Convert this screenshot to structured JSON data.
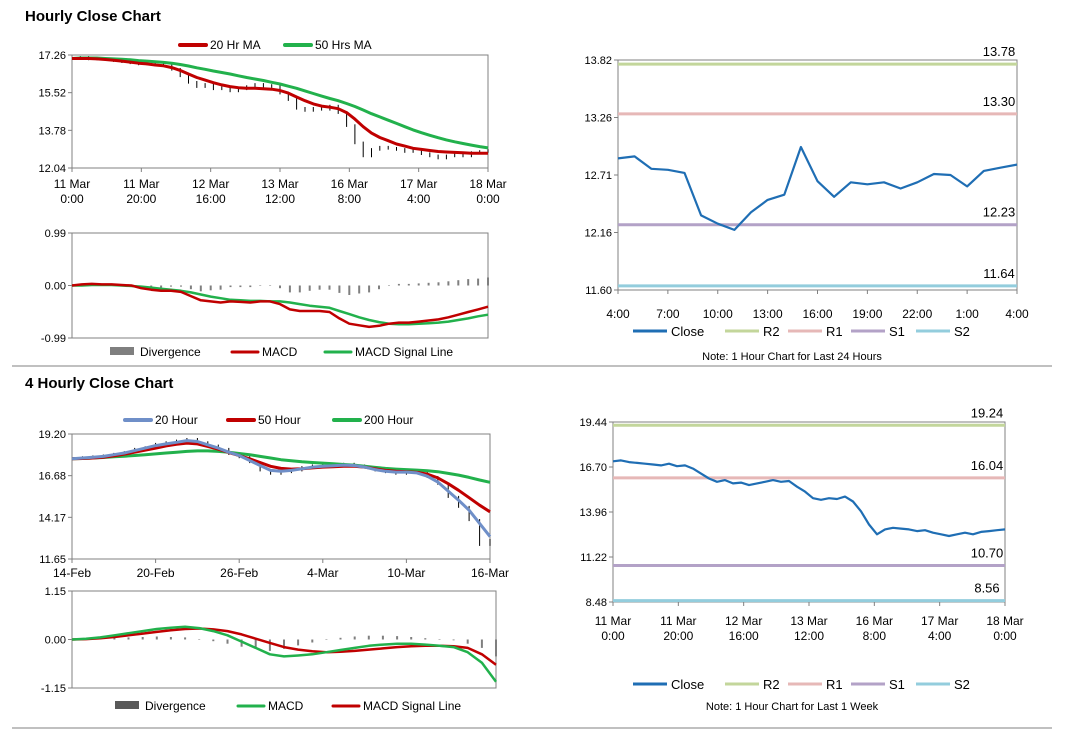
{
  "sections": [
    {
      "title": "Hourly Close Chart"
    },
    {
      "title": "4 Hourly Close Chart"
    }
  ],
  "colors": {
    "ma_red": "#c00000",
    "ma_green": "#22b14c",
    "ma_blue": "#6f8fc8",
    "close_blue": "#1f6eb4",
    "r2": "#c3d69b",
    "r1": "#e6b8b7",
    "s1": "#b3a2c7",
    "s2": "#93cddd",
    "divergence": "#7f7f7f"
  },
  "chart_data": [
    {
      "id": "hourly_price",
      "type": "line",
      "title": "Hourly Close Chart",
      "x_tick_labels": [
        [
          "11 Mar",
          "0:00"
        ],
        [
          "11 Mar",
          "20:00"
        ],
        [
          "12 Mar",
          "16:00"
        ],
        [
          "13 Mar",
          "12:00"
        ],
        [
          "16 Mar",
          "8:00"
        ],
        [
          "17 Mar",
          "4:00"
        ],
        [
          "18 Mar",
          "0:00"
        ]
      ],
      "y_tick_labels": [
        "17.26",
        "15.52",
        "13.78",
        "12.04"
      ],
      "ylim": [
        12.04,
        17.26
      ],
      "legend": [
        "20 Hr MA",
        "50 Hrs MA"
      ],
      "close": [
        17.1,
        17.15,
        17.08,
        17.1,
        17.05,
        17.0,
        16.95,
        16.9,
        16.85,
        16.9,
        16.8,
        16.85,
        16.6,
        16.3,
        16.0,
        15.8,
        15.9,
        15.7,
        15.75,
        15.6,
        15.7,
        15.8,
        15.9,
        15.8,
        15.85,
        15.5,
        15.2,
        14.8,
        14.7,
        14.8,
        14.75,
        14.9,
        14.6,
        14.0,
        13.2,
        12.6,
        12.9,
        13.0,
        12.95,
        12.9,
        12.8,
        12.85,
        12.7,
        12.6,
        12.5,
        12.6,
        12.7,
        12.6,
        12.75,
        12.8,
        12.85
      ],
      "ma20": [
        17.1,
        17.1,
        17.1,
        17.08,
        17.05,
        17.02,
        16.98,
        16.93,
        16.88,
        16.85,
        16.8,
        16.76,
        16.68,
        16.55,
        16.38,
        16.22,
        16.1,
        15.98,
        15.88,
        15.8,
        15.75,
        15.72,
        15.72,
        15.7,
        15.68,
        15.62,
        15.5,
        15.32,
        15.15,
        15.0,
        14.9,
        14.85,
        14.78,
        14.6,
        14.3,
        13.95,
        13.65,
        13.45,
        13.3,
        13.15,
        13.05,
        12.95,
        12.9,
        12.85,
        12.8,
        12.78,
        12.76,
        12.74,
        12.72,
        12.72,
        12.72
      ],
      "ma50": [
        17.1,
        17.12,
        17.12,
        17.12,
        17.1,
        17.08,
        17.06,
        17.04,
        17.0,
        16.98,
        16.95,
        16.92,
        16.88,
        16.82,
        16.75,
        16.67,
        16.6,
        16.52,
        16.45,
        16.38,
        16.3,
        16.22,
        16.15,
        16.08,
        16.0,
        15.92,
        15.82,
        15.72,
        15.6,
        15.48,
        15.36,
        15.25,
        15.15,
        15.02,
        14.88,
        14.72,
        14.55,
        14.4,
        14.25,
        14.1,
        13.95,
        13.8,
        13.67,
        13.55,
        13.44,
        13.34,
        13.25,
        13.17,
        13.1,
        13.03,
        12.97
      ]
    },
    {
      "id": "hourly_macd",
      "type": "line",
      "y_tick_labels": [
        "0.99",
        "0.00",
        "-0.99"
      ],
      "ylim": [
        -0.99,
        0.99
      ],
      "legend": [
        "Divergence",
        "MACD",
        "MACD Signal Line"
      ],
      "macd": [
        0.0,
        0.02,
        0.03,
        0.02,
        0.02,
        0.01,
        0.0,
        -0.05,
        -0.08,
        -0.1,
        -0.1,
        -0.12,
        -0.2,
        -0.28,
        -0.3,
        -0.32,
        -0.3,
        -0.31,
        -0.32,
        -0.3,
        -0.3,
        -0.35,
        -0.45,
        -0.48,
        -0.48,
        -0.48,
        -0.5,
        -0.62,
        -0.72,
        -0.75,
        -0.78,
        -0.76,
        -0.72,
        -0.7,
        -0.7,
        -0.68,
        -0.66,
        -0.64,
        -0.6,
        -0.55,
        -0.5,
        -0.45,
        -0.4
      ],
      "signal": [
        0.0,
        0.0,
        0.01,
        0.01,
        0.01,
        0.0,
        -0.01,
        -0.02,
        -0.04,
        -0.06,
        -0.08,
        -0.1,
        -0.13,
        -0.17,
        -0.21,
        -0.24,
        -0.27,
        -0.28,
        -0.29,
        -0.29,
        -0.3,
        -0.3,
        -0.32,
        -0.35,
        -0.38,
        -0.4,
        -0.42,
        -0.48,
        -0.54,
        -0.6,
        -0.65,
        -0.69,
        -0.72,
        -0.73,
        -0.73,
        -0.72,
        -0.71,
        -0.7,
        -0.68,
        -0.65,
        -0.62,
        -0.58,
        -0.55
      ],
      "divergence": [
        0.0,
        0.02,
        0.02,
        0.01,
        0.01,
        0.01,
        0.01,
        -0.03,
        -0.04,
        -0.04,
        -0.02,
        -0.02,
        -0.07,
        -0.11,
        -0.09,
        -0.08,
        -0.03,
        -0.03,
        -0.03,
        -0.01,
        0.0,
        -0.05,
        -0.13,
        -0.13,
        -0.1,
        -0.08,
        -0.08,
        -0.14,
        -0.18,
        -0.15,
        -0.13,
        -0.07,
        0.0,
        0.03,
        0.03,
        0.04,
        0.05,
        0.06,
        0.08,
        0.1,
        0.12,
        0.13,
        0.15
      ]
    },
    {
      "id": "hourly_24h",
      "type": "line",
      "x_tick_labels": [
        "4:00",
        "7:00",
        "10:00",
        "13:00",
        "16:00",
        "19:00",
        "22:00",
        "1:00",
        "4:00"
      ],
      "y_tick_labels": [
        "13.82",
        "13.26",
        "12.71",
        "12.16",
        "11.60"
      ],
      "ylim": [
        11.6,
        13.82
      ],
      "levels": [
        {
          "name": "R2",
          "value": 13.78,
          "label": "13.78"
        },
        {
          "name": "R1",
          "value": 13.3,
          "label": "13.30"
        },
        {
          "name": "S1",
          "value": 12.23,
          "label": "12.23"
        },
        {
          "name": "S2",
          "value": 11.64,
          "label": "11.64"
        }
      ],
      "close": [
        12.87,
        12.89,
        12.77,
        12.76,
        12.73,
        12.32,
        12.24,
        12.18,
        12.35,
        12.47,
        12.52,
        12.98,
        12.65,
        12.5,
        12.64,
        12.62,
        12.64,
        12.58,
        12.64,
        12.72,
        12.71,
        12.6,
        12.75,
        12.78,
        12.81
      ],
      "legend": [
        "Close",
        "R2",
        "R1",
        "S1",
        "S2"
      ],
      "note": "Note: 1 Hour Chart for Last 24 Hours"
    },
    {
      "id": "four_hourly_price",
      "type": "line",
      "title": "4 Hourly Close Chart",
      "x_tick_labels": [
        "14-Feb",
        "20-Feb",
        "26-Feb",
        "4-Mar",
        "10-Mar",
        "16-Mar"
      ],
      "y_tick_labels": [
        "19.20",
        "16.68",
        "14.17",
        "11.65"
      ],
      "ylim": [
        11.65,
        19.2
      ],
      "legend": [
        "20 Hour",
        "50 Hour",
        "200 Hour"
      ],
      "close": [
        17.7,
        17.8,
        17.85,
        17.9,
        18.0,
        18.1,
        18.3,
        18.4,
        18.6,
        18.7,
        18.8,
        18.9,
        18.7,
        18.5,
        18.3,
        18.0,
        17.8,
        17.5,
        17.0,
        16.8,
        16.9,
        17.0,
        17.2,
        17.3,
        17.25,
        17.3,
        17.4,
        17.3,
        17.2,
        17.0,
        16.9,
        16.8,
        16.9,
        16.9,
        16.6,
        16.2,
        15.4,
        14.8,
        14.0,
        12.5,
        12.8
      ],
      "ma20": [
        17.7,
        17.75,
        17.8,
        17.85,
        17.95,
        18.05,
        18.2,
        18.35,
        18.5,
        18.6,
        18.7,
        18.8,
        18.75,
        18.55,
        18.35,
        18.1,
        17.9,
        17.6,
        17.3,
        17.0,
        16.95,
        17.0,
        17.1,
        17.2,
        17.25,
        17.28,
        17.32,
        17.3,
        17.2,
        17.05,
        16.95,
        16.9,
        16.9,
        16.85,
        16.65,
        16.3,
        15.75,
        15.2,
        14.6,
        13.8,
        13.0
      ],
      "ma50": [
        17.7,
        17.72,
        17.75,
        17.8,
        17.88,
        17.98,
        18.1,
        18.22,
        18.35,
        18.48,
        18.58,
        18.65,
        18.6,
        18.45,
        18.28,
        18.08,
        17.9,
        17.7,
        17.48,
        17.25,
        17.12,
        17.08,
        17.1,
        17.15,
        17.2,
        17.22,
        17.25,
        17.25,
        17.2,
        17.1,
        17.0,
        16.95,
        16.92,
        16.88,
        16.78,
        16.55,
        16.2,
        15.8,
        15.35,
        14.9,
        14.5
      ],
      "ma200": [
        17.7,
        17.72,
        17.75,
        17.78,
        17.82,
        17.86,
        17.9,
        17.95,
        18.0,
        18.05,
        18.1,
        18.15,
        18.18,
        18.18,
        18.15,
        18.1,
        18.02,
        17.95,
        17.85,
        17.75,
        17.65,
        17.58,
        17.52,
        17.48,
        17.44,
        17.4,
        17.36,
        17.32,
        17.25,
        17.18,
        17.12,
        17.08,
        17.05,
        17.02,
        16.98,
        16.92,
        16.82,
        16.72,
        16.58,
        16.42,
        16.28
      ]
    },
    {
      "id": "four_hourly_macd",
      "type": "line",
      "y_tick_labels": [
        "1.15",
        "0.00",
        "-1.15"
      ],
      "ylim": [
        -1.15,
        1.15
      ],
      "legend": [
        "Divergence",
        "MACD",
        "MACD Signal Line"
      ],
      "macd": [
        0.0,
        0.02,
        0.05,
        0.1,
        0.15,
        0.2,
        0.25,
        0.28,
        0.3,
        0.27,
        0.2,
        0.1,
        -0.05,
        -0.2,
        -0.35,
        -0.4,
        -0.38,
        -0.35,
        -0.3,
        -0.25,
        -0.2,
        -0.15,
        -0.12,
        -0.1,
        -0.1,
        -0.12,
        -0.15,
        -0.18,
        -0.3,
        -0.55,
        -1.0
      ],
      "signal": [
        0.0,
        0.01,
        0.03,
        0.06,
        0.1,
        0.14,
        0.18,
        0.22,
        0.25,
        0.26,
        0.24,
        0.2,
        0.12,
        0.02,
        -0.08,
        -0.18,
        -0.24,
        -0.28,
        -0.3,
        -0.29,
        -0.27,
        -0.24,
        -0.21,
        -0.18,
        -0.16,
        -0.15,
        -0.15,
        -0.16,
        -0.2,
        -0.35,
        -0.6
      ],
      "divergence": [
        0.0,
        0.01,
        0.02,
        0.04,
        0.05,
        0.06,
        0.07,
        0.06,
        0.05,
        0.01,
        -0.04,
        -0.1,
        -0.17,
        -0.22,
        -0.27,
        -0.22,
        -0.14,
        -0.07,
        0.0,
        0.04,
        0.07,
        0.09,
        0.09,
        0.08,
        0.06,
        0.03,
        0.0,
        -0.02,
        -0.1,
        -0.2,
        -0.4
      ],
      "legend_colors_note": "Divergence grey, MACD green, Signal red"
    },
    {
      "id": "four_hourly_week",
      "type": "line",
      "x_tick_labels": [
        [
          "11 Mar",
          "0:00"
        ],
        [
          "11 Mar",
          "20:00"
        ],
        [
          "12 Mar",
          "16:00"
        ],
        [
          "13 Mar",
          "12:00"
        ],
        [
          "16 Mar",
          "8:00"
        ],
        [
          "17 Mar",
          "4:00"
        ],
        [
          "18 Mar",
          "0:00"
        ]
      ],
      "y_tick_labels": [
        "19.44",
        "16.70",
        "13.96",
        "11.22",
        "8.48"
      ],
      "ylim": [
        8.48,
        19.44
      ],
      "levels": [
        {
          "name": "R2",
          "value": 19.24,
          "label": "19.24"
        },
        {
          "name": "R1",
          "value": 16.04,
          "label": "16.04"
        },
        {
          "name": "S1",
          "value": 10.7,
          "label": "10.70"
        },
        {
          "name": "S2",
          "value": 8.56,
          "label": "8.56"
        }
      ],
      "close": [
        17.05,
        17.1,
        17.0,
        16.95,
        16.9,
        16.85,
        16.8,
        16.9,
        16.75,
        16.8,
        16.6,
        16.3,
        16.0,
        15.8,
        15.9,
        15.7,
        15.75,
        15.6,
        15.7,
        15.8,
        15.9,
        15.8,
        15.85,
        15.5,
        15.2,
        14.8,
        14.7,
        14.8,
        14.75,
        14.9,
        14.6,
        14.0,
        13.2,
        12.6,
        12.9,
        13.0,
        12.95,
        12.9,
        12.8,
        12.85,
        12.7,
        12.6,
        12.5,
        12.6,
        12.7,
        12.6,
        12.75,
        12.8,
        12.85,
        12.9
      ],
      "legend": [
        "Close",
        "R2",
        "R1",
        "S1",
        "S2"
      ],
      "note": "Note: 1 Hour Chart for Last 1 Week"
    }
  ]
}
